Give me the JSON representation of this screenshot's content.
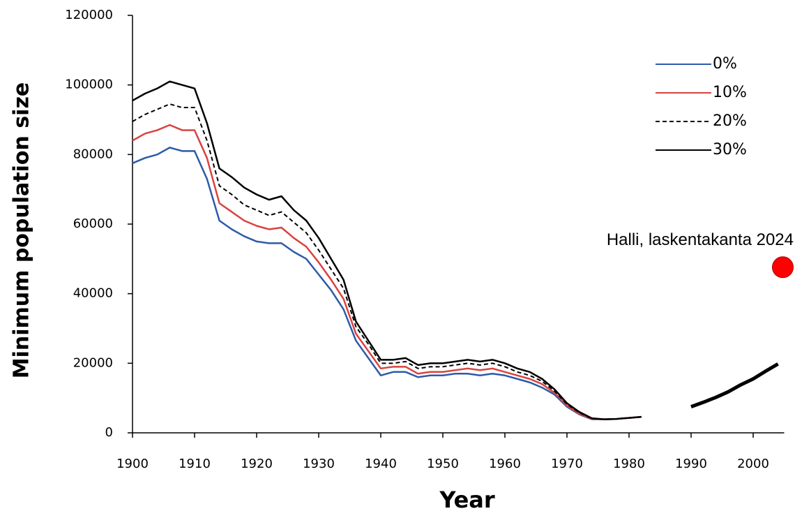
{
  "chart_data": {
    "type": "line",
    "xlabel": "Year",
    "ylabel": "Minimum population size",
    "x": [
      1900,
      1902,
      1904,
      1906,
      1908,
      1910,
      1912,
      1914,
      1916,
      1918,
      1920,
      1922,
      1924,
      1926,
      1928,
      1930,
      1932,
      1934,
      1936,
      1938,
      1940,
      1942,
      1944,
      1946,
      1948,
      1950,
      1952,
      1954,
      1956,
      1958,
      1960,
      1962,
      1964,
      1966,
      1968,
      1970,
      1972,
      1974,
      1976,
      1978,
      1980,
      1982,
      1984,
      1986,
      1988,
      1990,
      1992,
      1994,
      1996,
      1998,
      2000,
      2002,
      2004
    ],
    "series": [
      {
        "name": "0%",
        "color": "#2e5aa8",
        "style": "solid",
        "values": [
          77500,
          79000,
          80000,
          82000,
          81000,
          81000,
          73000,
          61000,
          58500,
          56500,
          55000,
          54500,
          54500,
          52000,
          50000,
          45500,
          41000,
          35500,
          26500,
          21500,
          16500,
          17500,
          17500,
          16000,
          16500,
          16500,
          17000,
          17000,
          16500,
          17000,
          16500,
          15500,
          14500,
          13000,
          11000,
          7500,
          5300,
          3900,
          3900,
          4000,
          4300,
          4600,
          null,
          null,
          null,
          null,
          null,
          null,
          null,
          null,
          null,
          null,
          null
        ]
      },
      {
        "name": "10%",
        "color": "#d9433f",
        "style": "solid",
        "values": [
          84000,
          86000,
          87000,
          88500,
          87000,
          87000,
          79000,
          66000,
          63500,
          61000,
          59500,
          58500,
          59000,
          56000,
          53500,
          49000,
          44000,
          38500,
          28500,
          23500,
          18500,
          19000,
          19000,
          17000,
          17500,
          17500,
          18000,
          18500,
          18000,
          18500,
          17500,
          16500,
          15500,
          14000,
          11500,
          7800,
          5500,
          4000,
          3900,
          4000,
          4300,
          4600,
          null,
          null,
          null,
          null,
          null,
          null,
          null,
          null,
          null,
          null,
          null
        ]
      },
      {
        "name": "20%",
        "color": "#000000",
        "style": "dashed",
        "values": [
          89500,
          91500,
          93000,
          94500,
          93500,
          93500,
          84000,
          71000,
          68500,
          65500,
          64000,
          62500,
          63500,
          60500,
          57500,
          52500,
          47000,
          41500,
          30500,
          25500,
          20000,
          20000,
          20500,
          18500,
          19000,
          19000,
          19500,
          20000,
          19500,
          20000,
          19000,
          17500,
          16500,
          14800,
          12000,
          8200,
          5800,
          4100,
          3900,
          4000,
          4300,
          4600,
          null,
          null,
          null,
          null,
          null,
          null,
          null,
          null,
          null,
          null,
          null
        ]
      },
      {
        "name": "30%",
        "color": "#000000",
        "style": "solid",
        "values": [
          95500,
          97500,
          99000,
          101000,
          100000,
          99000,
          89000,
          76000,
          73500,
          70500,
          68500,
          67000,
          68000,
          64000,
          61000,
          56000,
          50000,
          44000,
          32000,
          26500,
          21000,
          21000,
          21500,
          19500,
          20000,
          20000,
          20500,
          21000,
          20500,
          21000,
          20000,
          18500,
          17500,
          15500,
          12500,
          8500,
          6000,
          4200,
          3900,
          4000,
          4300,
          4600,
          null,
          null,
          null,
          null,
          null,
          null,
          null,
          null,
          null,
          null,
          null
        ]
      },
      {
        "color": "#000000",
        "style": "thick",
        "values": [
          null,
          null,
          null,
          null,
          null,
          null,
          null,
          null,
          null,
          null,
          null,
          null,
          null,
          null,
          null,
          null,
          null,
          null,
          null,
          null,
          null,
          null,
          null,
          null,
          null,
          null,
          null,
          null,
          null,
          null,
          null,
          null,
          null,
          null,
          null,
          null,
          null,
          null,
          null,
          null,
          null,
          null,
          null,
          null,
          null,
          7500,
          8800,
          10200,
          11800,
          13800,
          15500,
          17700,
          19800
        ]
      }
    ],
    "xlim": [
      1900,
      2005
    ],
    "ylim": [
      0,
      120000
    ],
    "xticks": [
      1900,
      1910,
      1920,
      1930,
      1940,
      1950,
      1960,
      1970,
      1980,
      1990,
      2000
    ],
    "yticks": [
      0,
      20000,
      40000,
      60000,
      80000,
      100000,
      120000
    ],
    "legend": "top-right",
    "point": {
      "x": 2005,
      "y": 47600,
      "color": "#ff0000",
      "label": "Halli, laskentakanta 2024"
    }
  }
}
